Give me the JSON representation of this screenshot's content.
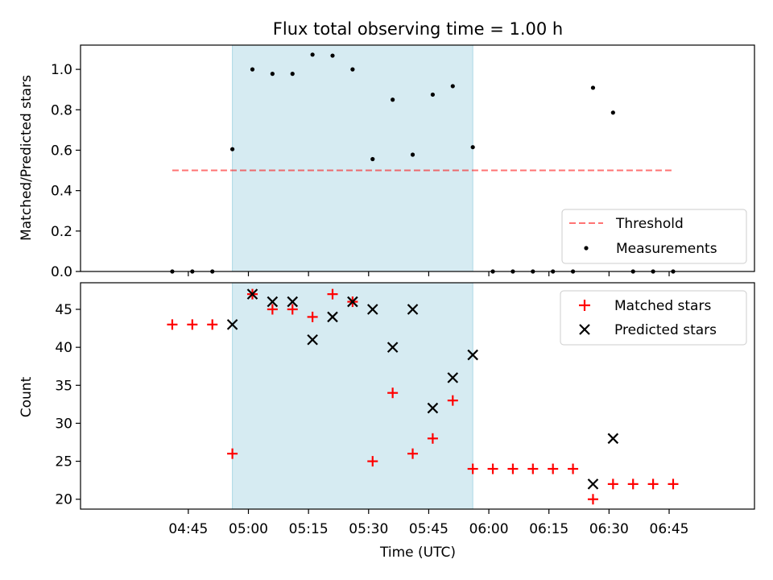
{
  "chart_data": {
    "title": "Flux total observing time = 1.00 h",
    "xlabel": "Time (UTC)",
    "x_ticks": [
      "04:45",
      "05:00",
      "05:15",
      "05:30",
      "05:45",
      "06:00",
      "06:15",
      "06:30",
      "06:45"
    ],
    "time_points": [
      "04:41",
      "04:46",
      "04:51",
      "04:56",
      "05:01",
      "05:06",
      "05:11",
      "05:16",
      "05:21",
      "05:26",
      "05:31",
      "05:36",
      "05:41",
      "05:46",
      "05:51",
      "05:56",
      "06:01",
      "06:06",
      "06:11",
      "06:16",
      "06:21",
      "06:26",
      "06:31",
      "06:36",
      "06:41",
      "06:46"
    ],
    "shaded_span": [
      "04:56",
      "05:56"
    ],
    "colors": {
      "shade": "#add8e6",
      "threshold": "#ff0000",
      "matched": "#ff0000",
      "predicted": "#000000",
      "measurements": "#000000"
    },
    "top": {
      "type": "scatter",
      "ylabel": "Matched/Predicted stars",
      "ylim": [
        0,
        1.12
      ],
      "y_ticks": [
        "0.0",
        "0.2",
        "0.4",
        "0.6",
        "0.8",
        "1.0"
      ],
      "threshold": 0.5,
      "series": [
        {
          "name": "Threshold",
          "kind": "line"
        },
        {
          "name": "Measurements",
          "kind": "scatter",
          "values": [
            0,
            0,
            0,
            0.605,
            1.0,
            0.978,
            0.978,
            1.073,
            1.068,
            1.0,
            0.556,
            0.85,
            0.578,
            0.875,
            0.917,
            0.615,
            0,
            0,
            0,
            0,
            0,
            0.909,
            0.786,
            0,
            0,
            0
          ]
        }
      ],
      "legend_position": "lower right"
    },
    "bottom": {
      "type": "scatter",
      "ylabel": "Count",
      "ylim": [
        18.7,
        48.5
      ],
      "y_ticks": [
        "20",
        "25",
        "30",
        "35",
        "40",
        "45"
      ],
      "series": [
        {
          "name": "Matched stars",
          "marker": "plus",
          "values": [
            43,
            43,
            43,
            26,
            47,
            45,
            45,
            44,
            47,
            46,
            25,
            34,
            26,
            28,
            33,
            24,
            24,
            24,
            24,
            24,
            24,
            20,
            22,
            22,
            22,
            22
          ]
        },
        {
          "name": "Predicted stars",
          "marker": "x",
          "values": [
            null,
            null,
            null,
            43,
            47,
            46,
            46,
            41,
            44,
            46,
            45,
            40,
            45,
            32,
            36,
            39,
            null,
            null,
            null,
            null,
            null,
            22,
            28,
            null,
            null,
            null
          ]
        }
      ],
      "legend_position": "upper right"
    }
  }
}
